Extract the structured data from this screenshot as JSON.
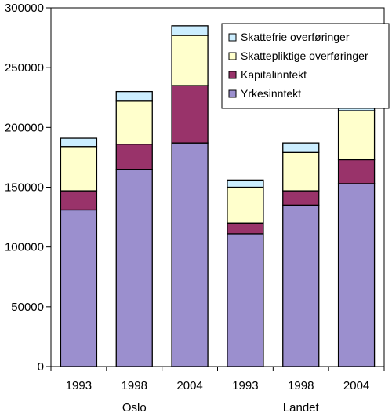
{
  "chart_data": {
    "type": "bar",
    "stacked": true,
    "categories": [
      "1993",
      "1998",
      "2004",
      "1993",
      "1998",
      "2004"
    ],
    "groups": [
      {
        "label": "Oslo",
        "category_indices": [
          0,
          1,
          2
        ]
      },
      {
        "label": "Landet",
        "category_indices": [
          3,
          4,
          5
        ]
      }
    ],
    "series": [
      {
        "name": "Yrkesinntekt",
        "color": "#9b8fce",
        "values": [
          131000,
          165000,
          187000,
          111000,
          135000,
          153000
        ]
      },
      {
        "name": "Kapitalinntekt",
        "color": "#99336a",
        "values": [
          16000,
          21000,
          48000,
          9000,
          12000,
          20000
        ]
      },
      {
        "name": "Skattepliktige overføringer",
        "color": "#ffffcc",
        "values": [
          37000,
          36000,
          42000,
          30000,
          32000,
          41000
        ]
      },
      {
        "name": "Skattefrie overføringer",
        "color": "#cceeff",
        "values": [
          7000,
          8000,
          8000,
          6000,
          8000,
          9000
        ]
      }
    ],
    "legend_order": [
      "Skattefrie overføringer",
      "Skattepliktige overføringer",
      "Kapitalinntekt",
      "Yrkesinntekt"
    ],
    "ylim": [
      0,
      300000
    ],
    "yticks": [
      "0",
      "50000",
      "100000",
      "150000",
      "200000",
      "250000",
      "300000"
    ],
    "grid": false,
    "legend_position": "top-right",
    "xlabel": "",
    "ylabel": "",
    "title": ""
  }
}
